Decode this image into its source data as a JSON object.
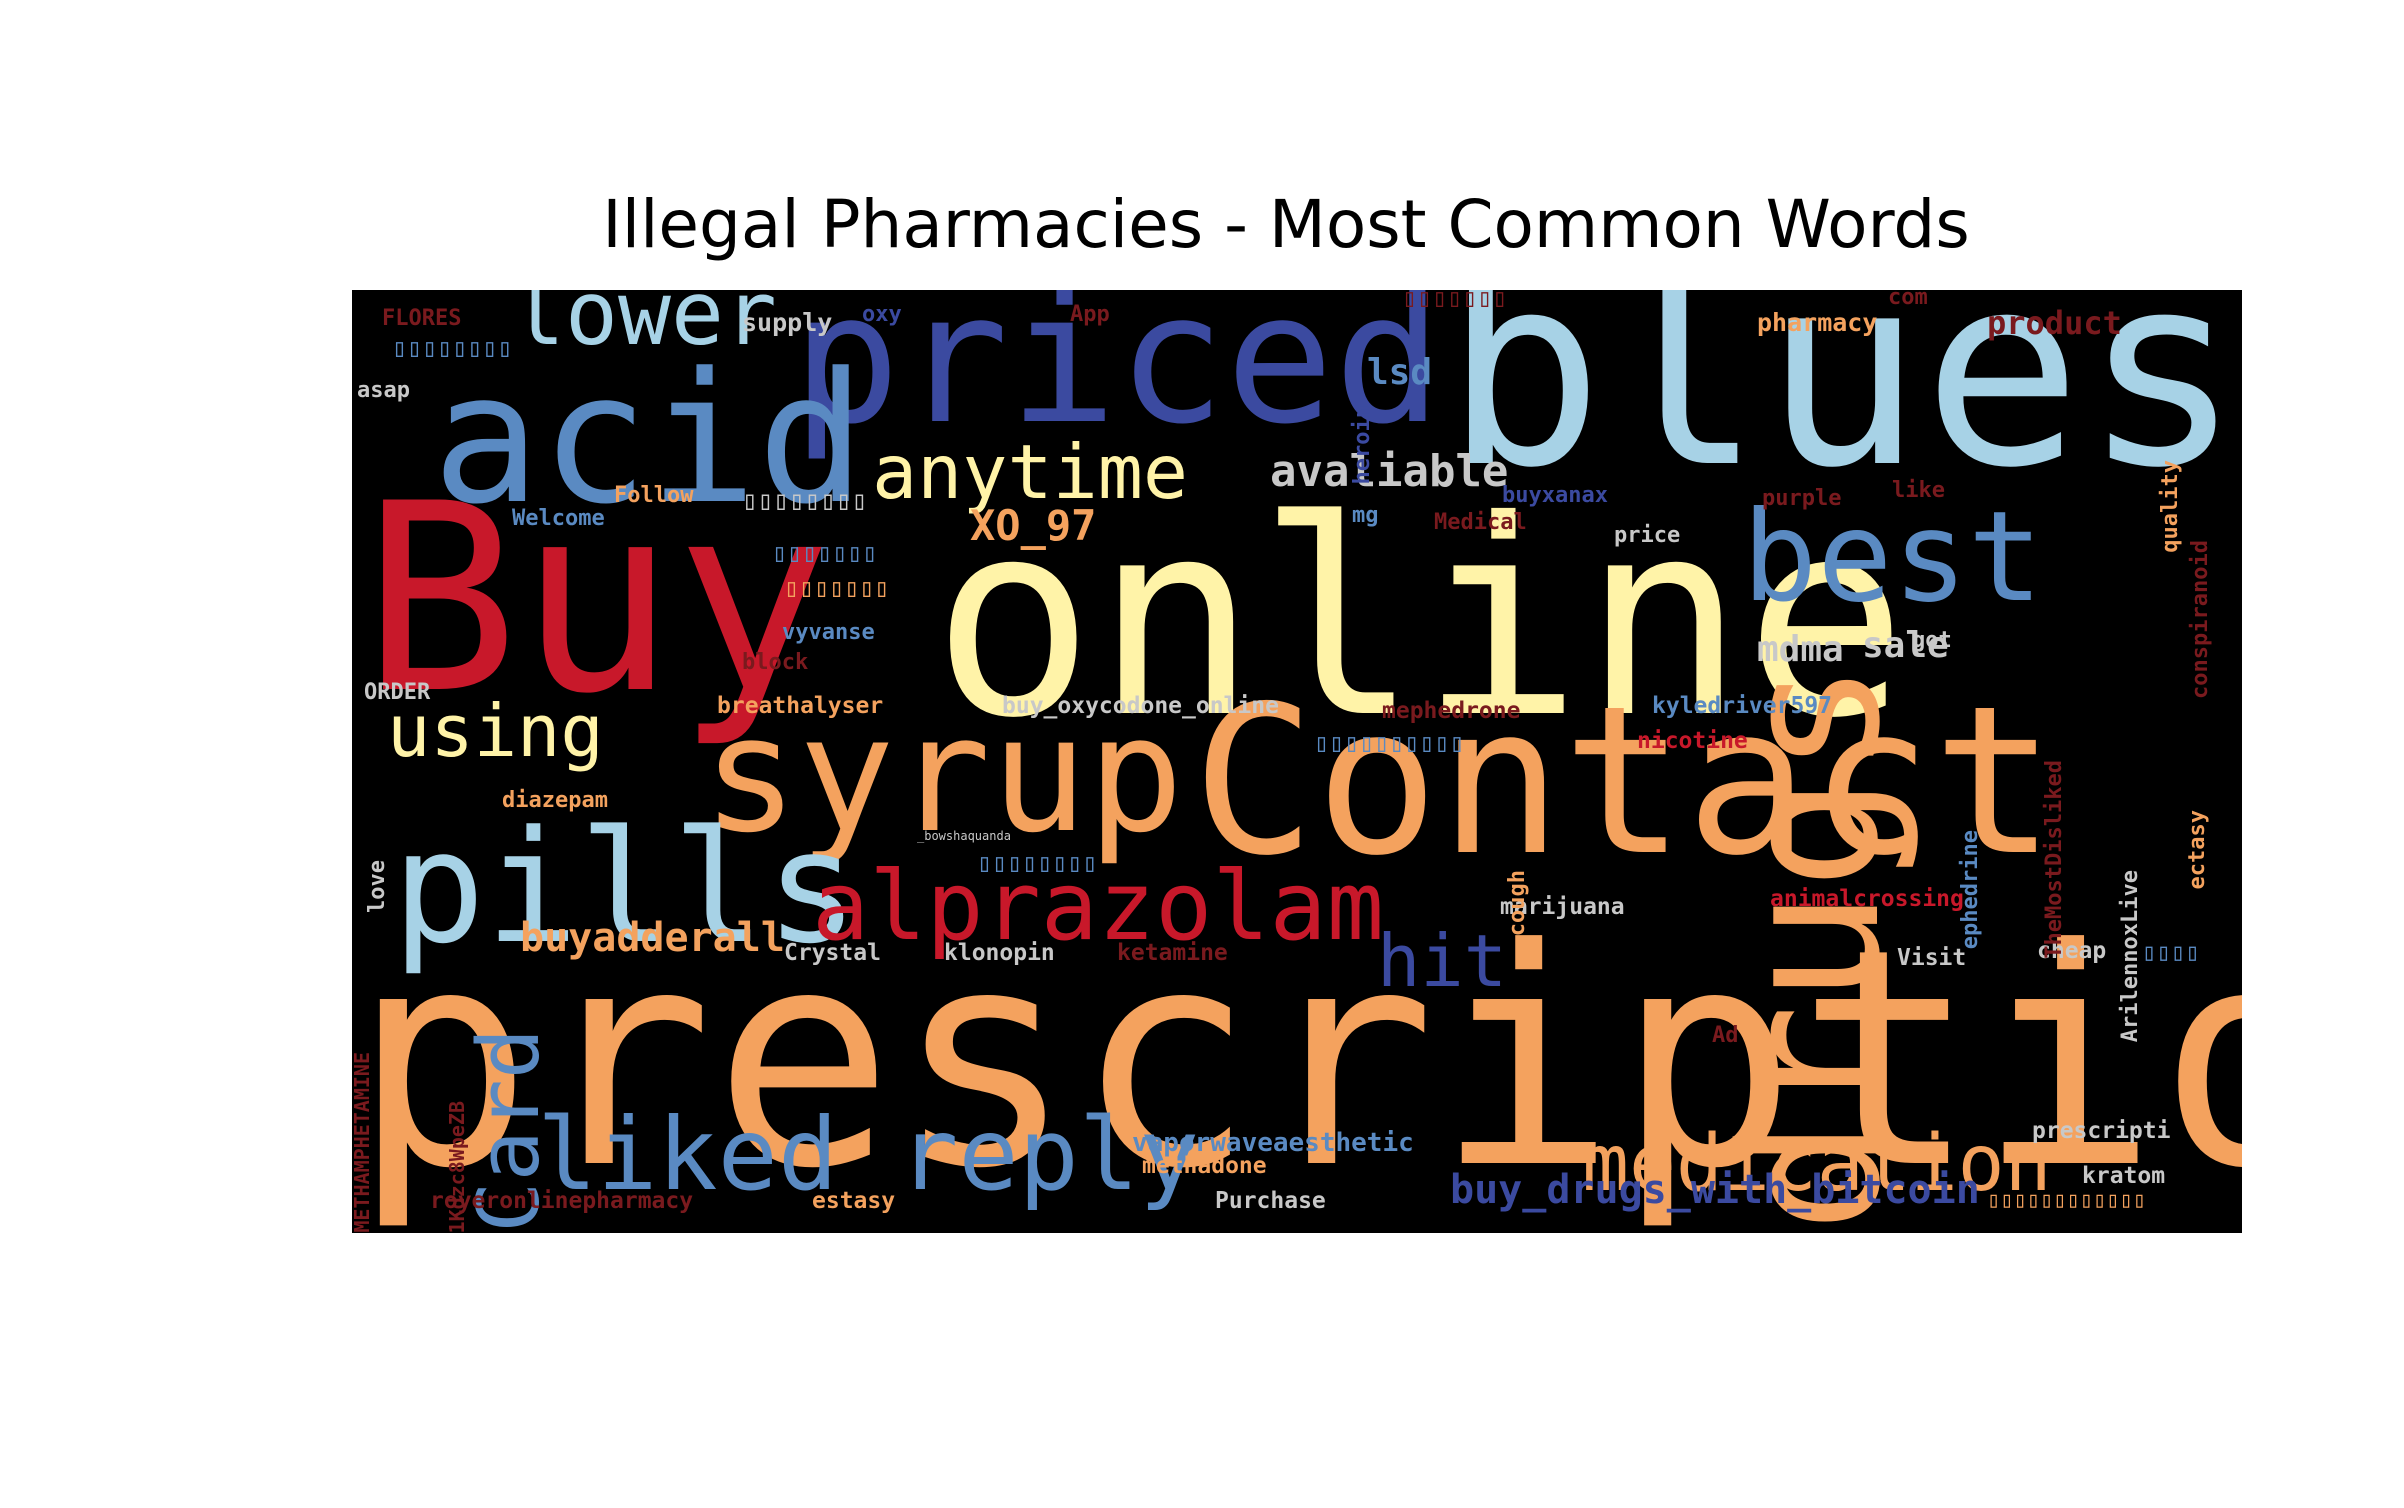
{
  "chart_data": {
    "type": "wordcloud",
    "title": "Illegal Pharmacies - Most Common Words",
    "colors": {
      "background": "#000000",
      "red": "#c8182a",
      "orange": "#f4a25e",
      "yellow": "#fff3a8",
      "lightblue": "#a7d2e6",
      "blue": "#5a8ac2",
      "indigo": "#3b4aa0",
      "darkred": "#7a1a1e",
      "grey": "#c8c8c8"
    },
    "words": [
      {
        "text": "prescription",
        "weight": 100
      },
      {
        "text": "online",
        "weight": 88
      },
      {
        "text": "blues",
        "weight": 82
      },
      {
        "text": "Buy",
        "weight": 82
      },
      {
        "text": "Contact",
        "weight": 70
      },
      {
        "text": "priced",
        "weight": 64
      },
      {
        "text": "acid",
        "weight": 60
      },
      {
        "text": "drugs",
        "weight": 60
      },
      {
        "text": "syrup",
        "weight": 58
      },
      {
        "text": "pills",
        "weight": 56
      },
      {
        "text": "best",
        "weight": 50
      },
      {
        "text": "liked reply",
        "weight": 42
      },
      {
        "text": "alprazolam",
        "weight": 40
      },
      {
        "text": "Card",
        "weight": 36
      },
      {
        "text": "medication",
        "weight": 35
      },
      {
        "text": "lower",
        "weight": 34
      },
      {
        "text": "anytime",
        "weight": 34
      },
      {
        "text": "using",
        "weight": 33
      },
      {
        "text": "hit",
        "weight": 32
      },
      {
        "text": "avaliable",
        "weight": 22
      },
      {
        "text": "buyadderall",
        "weight": 20
      },
      {
        "text": "XO_97",
        "weight": 20
      },
      {
        "text": "buy_drugs_with_bitcoin",
        "weight": 20
      },
      {
        "text": "mdma",
        "weight": 19
      },
      {
        "text": "sale",
        "weight": 19
      },
      {
        "text": "lsd",
        "weight": 19
      },
      {
        "text": "product",
        "weight": 18
      },
      {
        "text": "vaporwaveaesthetic",
        "weight": 16
      },
      {
        "text": "pharmacy",
        "weight": 15
      },
      {
        "text": "supply",
        "weight": 15
      },
      {
        "text": "buy_oxycodone_online",
        "weight": 15
      },
      {
        "text": "mephedrone",
        "weight": 15
      },
      {
        "text": "kyledriver597",
        "weight": 15
      },
      {
        "text": "nicotine",
        "weight": 15
      },
      {
        "text": "breathalyser",
        "weight": 15
      },
      {
        "text": "marijuana",
        "weight": 15
      },
      {
        "text": "animalcrossing",
        "weight": 15
      },
      {
        "text": "Crystal",
        "weight": 14
      },
      {
        "text": "klonopin",
        "weight": 14
      },
      {
        "text": "ketamine",
        "weight": 14
      },
      {
        "text": "cheap",
        "weight": 14
      },
      {
        "text": "Visit",
        "weight": 14
      },
      {
        "text": "prescripti",
        "weight": 14
      },
      {
        "text": "methadone",
        "weight": 14
      },
      {
        "text": "Purchase",
        "weight": 14
      },
      {
        "text": "estasy",
        "weight": 14
      },
      {
        "text": "kratom",
        "weight": 14
      },
      {
        "text": "royeronlinepharmacy",
        "weight": 13
      },
      {
        "text": "diazepam",
        "weight": 13
      },
      {
        "text": "vyvanse",
        "weight": 13
      },
      {
        "text": "block",
        "weight": 13
      },
      {
        "text": "ORDER",
        "weight": 13
      },
      {
        "text": "Follow",
        "weight": 13
      },
      {
        "text": "Welcome",
        "weight": 13
      },
      {
        "text": "asap",
        "weight": 13
      },
      {
        "text": "FLORES",
        "weight": 13
      },
      {
        "text": "oxy",
        "weight": 13
      },
      {
        "text": "App",
        "weight": 13
      },
      {
        "text": "com",
        "weight": 13
      },
      {
        "text": "buyxanax",
        "weight": 13
      },
      {
        "text": "Medical",
        "weight": 13
      },
      {
        "text": "mg",
        "weight": 13
      },
      {
        "text": "price",
        "weight": 13
      },
      {
        "text": "purple",
        "weight": 13
      },
      {
        "text": "like",
        "weight": 13
      },
      {
        "text": "got",
        "weight": 13
      },
      {
        "text": "Ad",
        "weight": 13
      },
      {
        "text": "heroin",
        "weight": 13
      },
      {
        "text": "quality",
        "weight": 13
      },
      {
        "text": "conspiranoid",
        "weight": 13
      },
      {
        "text": "TheMostDisliked",
        "weight": 13
      },
      {
        "text": "ephedrine",
        "weight": 13
      },
      {
        "text": "ArilennoxLive",
        "weight": 13
      },
      {
        "text": "ectasy",
        "weight": 13
      },
      {
        "text": "cough",
        "weight": 13
      },
      {
        "text": "love",
        "weight": 13
      },
      {
        "text": "METHAMPHETAMINE",
        "weight": 12
      },
      {
        "text": "1Kdzc8WpeZB",
        "weight": 12
      },
      {
        "text": "_bowshaquanda",
        "weight": 8
      },
      {
        "text": "▯▯▯▯▯▯▯▯",
        "weight": 15
      },
      {
        "text": "▯▯▯▯▯▯▯",
        "weight": 14
      },
      {
        "text": "▯▯▯▯▯▯▯▯",
        "weight": 14
      },
      {
        "text": "▯▯▯▯▯▯▯",
        "weight": 13
      },
      {
        "text": "▯▯▯▯▯▯▯",
        "weight": 13
      },
      {
        "text": "▯▯▯▯▯▯▯▯▯▯",
        "weight": 15
      },
      {
        "text": "▯▯▯▯▯▯▯▯",
        "weight": 14
      },
      {
        "text": "▯▯▯▯",
        "weight": 13
      },
      {
        "text": "▯▯▯▯▯▯▯▯▯▯▯▯",
        "weight": 13
      }
    ]
  }
}
